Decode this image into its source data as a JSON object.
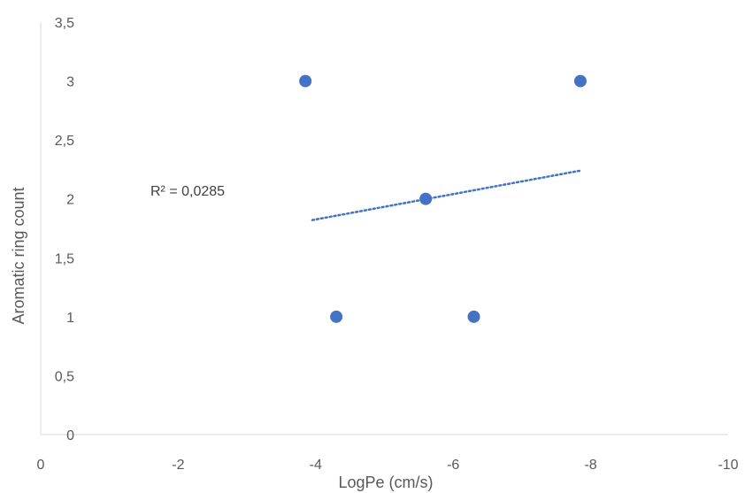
{
  "chart_data": {
    "type": "scatter",
    "title": "",
    "xlabel": "LogPe (cm/s)",
    "ylabel": "Aromatic ring count",
    "xlim": [
      0,
      -10
    ],
    "ylim": [
      0,
      3.5
    ],
    "x_ticks": [
      "0",
      "-2",
      "-4",
      "-6",
      "-8",
      "-10"
    ],
    "x_tick_values": [
      0,
      -2,
      -4,
      -6,
      -8,
      -10
    ],
    "y_ticks": [
      "0",
      "0,5",
      "1",
      "1,5",
      "2",
      "2,5",
      "3",
      "3,5"
    ],
    "y_tick_values": [
      0,
      0.5,
      1,
      1.5,
      2,
      2.5,
      3,
      3.5
    ],
    "series": [
      {
        "x": [
          -3.85,
          -4.3,
          -5.6,
          -6.3,
          -7.85
        ],
        "y": [
          3,
          1,
          2,
          1,
          3
        ],
        "color": "#4472C4"
      }
    ],
    "trendline": {
      "type": "linear",
      "x": [
        -3.95,
        -7.85
      ],
      "y": [
        1.82,
        2.24
      ],
      "style": "dotted",
      "color": "#4472C4"
    },
    "annotation": "R² = 0,0285",
    "grid": false,
    "legend": "none"
  }
}
